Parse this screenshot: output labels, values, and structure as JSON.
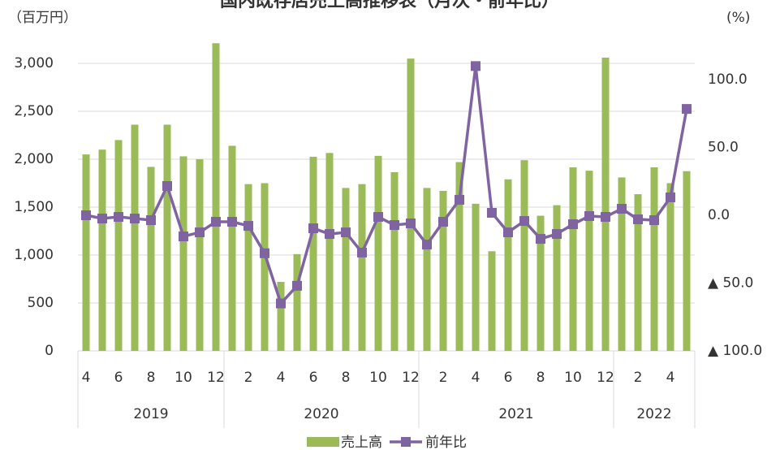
{
  "chart_data": {
    "type": "bar_line",
    "title": "国内既存店売上高推移表（月次・前年比）",
    "y_label": "（百万円）",
    "y2_label": "(%)",
    "categories": [
      4,
      null,
      6,
      null,
      8,
      null,
      10,
      null,
      12,
      null,
      2,
      null,
      4,
      null,
      6,
      null,
      8,
      null,
      10,
      null,
      12,
      null,
      2,
      null,
      4,
      null,
      6,
      null,
      8,
      null,
      10,
      null,
      12,
      null,
      2,
      null,
      4,
      null
    ],
    "years": [
      "2019",
      "2020",
      "2021",
      "2022"
    ],
    "ylim": [
      0,
      3000
    ],
    "yticks": [
      0,
      500,
      {
        "value": 1000,
        "label": "1,000"
      },
      {
        "value": 1500,
        "label": "1,500"
      },
      {
        "value": 2000,
        "label": "2,000"
      },
      {
        "value": 2500,
        "label": "2,500"
      },
      {
        "value": 3000,
        "label": "3,000"
      }
    ],
    "y2lim": [
      -100,
      112
    ],
    "y2ticks": [
      {
        "value": 100,
        "label": "100.0"
      },
      {
        "value": 50,
        "label": "50.0"
      },
      {
        "value": 0,
        "label": "0.0"
      },
      {
        "value": -50,
        "label": "▲ 50.0"
      },
      {
        "value": -100,
        "label": "▲ 100.0"
      }
    ],
    "grid": true,
    "series": [
      {
        "name": "売上高",
        "color": "#9bbb59",
        "kind": "bar",
        "values": [
          2050,
          2100,
          2200,
          2360,
          1920,
          2360,
          2030,
          2000,
          3210,
          2140,
          1740,
          1750,
          720,
          1010,
          2025,
          2065,
          1700,
          1740,
          2035,
          1865,
          3050,
          1700,
          1670,
          1970,
          1535,
          1040,
          1790,
          1990,
          1410,
          1520,
          1915,
          1880,
          3060,
          1810,
          1635,
          1915,
          1750,
          1875
        ]
      },
      {
        "name": "前年比",
        "color": "#8064a2",
        "kind": "line",
        "axis": "y2",
        "values": [
          0,
          -2.4,
          -1.2,
          -2.4,
          -3.6,
          21.6,
          -15.6,
          -12.6,
          -4.8,
          -4.8,
          -7.8,
          -28,
          -65,
          -52,
          -9.6,
          -13.8,
          -12.6,
          -27.5,
          -1.2,
          -7.2,
          -6,
          -21.6,
          -4.8,
          11.4,
          110,
          1.8,
          -12.6,
          -4.2,
          -17.4,
          -13.8,
          -6.6,
          -0.6,
          -1.2,
          4.8,
          -3,
          -3.6,
          13.2,
          78.4
        ]
      }
    ]
  }
}
